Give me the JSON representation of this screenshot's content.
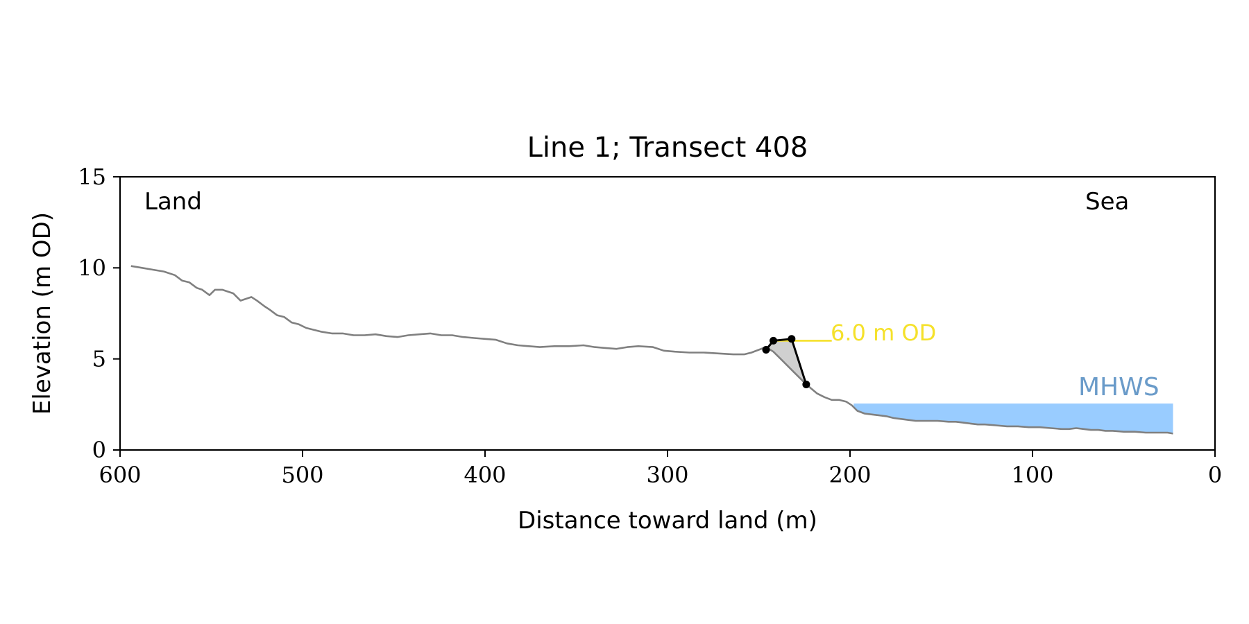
{
  "chart_data": {
    "type": "line",
    "title": "Line 1; Transect 408",
    "xlabel": "Distance toward land (m)",
    "ylabel": "Elevation (m OD)",
    "xlim": [
      600,
      0
    ],
    "ylim": [
      0,
      15
    ],
    "x_ticks": [
      600,
      500,
      400,
      300,
      200,
      100,
      0
    ],
    "y_ticks": [
      0,
      5,
      10,
      15
    ],
    "grid": false,
    "annotations": {
      "land": "Land",
      "sea": "Sea",
      "od_line_label": "6.0 m OD",
      "mhws_label": "MHWS"
    },
    "colors": {
      "profile": "#808080",
      "feature": "#000000",
      "feature_fill": "#d0d0d0",
      "od_line": "#f5e12a",
      "mhws_fill": "#99ccff",
      "mhws_text": "#6a9bc9"
    },
    "profile": {
      "x": [
        594,
        588,
        582,
        576,
        570,
        566,
        562,
        558,
        555,
        551,
        548,
        544,
        541,
        538,
        534,
        531,
        528,
        525,
        521,
        518,
        514,
        510,
        506,
        502,
        498,
        494,
        490,
        484,
        478,
        472,
        466,
        460,
        454,
        448,
        442,
        436,
        430,
        424,
        418,
        412,
        406,
        400,
        394,
        388,
        382,
        376,
        370,
        362,
        354,
        346,
        340,
        334,
        328,
        322,
        316,
        308,
        302,
        296,
        288,
        280,
        272,
        264,
        258,
        254,
        250,
        246,
        242,
        238,
        234,
        230,
        227,
        224,
        221,
        218,
        214,
        210,
        206,
        202,
        199,
        196,
        192,
        188,
        184,
        180,
        176,
        172,
        168,
        164,
        158,
        152,
        146,
        142,
        138,
        134,
        130,
        126,
        120,
        114,
        108,
        102,
        96,
        90,
        84,
        80,
        76,
        72,
        68,
        64,
        60,
        56,
        50,
        44,
        38,
        32,
        26,
        23
      ],
      "y": [
        10.1,
        10.0,
        9.9,
        9.8,
        9.6,
        9.3,
        9.2,
        8.9,
        8.8,
        8.5,
        8.8,
        8.8,
        8.7,
        8.6,
        8.2,
        8.3,
        8.4,
        8.2,
        7.9,
        7.7,
        7.4,
        7.3,
        7.0,
        6.9,
        6.7,
        6.6,
        6.5,
        6.4,
        6.4,
        6.3,
        6.3,
        6.35,
        6.25,
        6.2,
        6.3,
        6.35,
        6.4,
        6.3,
        6.3,
        6.2,
        6.15,
        6.1,
        6.05,
        5.85,
        5.75,
        5.7,
        5.65,
        5.7,
        5.7,
        5.75,
        5.65,
        5.6,
        5.55,
        5.65,
        5.7,
        5.65,
        5.45,
        5.4,
        5.35,
        5.35,
        5.3,
        5.25,
        5.25,
        5.35,
        5.5,
        5.65,
        5.4,
        5.0,
        4.6,
        4.2,
        3.9,
        3.6,
        3.35,
        3.1,
        2.9,
        2.75,
        2.75,
        2.65,
        2.45,
        2.15,
        2.0,
        1.95,
        1.9,
        1.85,
        1.75,
        1.7,
        1.65,
        1.6,
        1.6,
        1.6,
        1.55,
        1.55,
        1.5,
        1.45,
        1.4,
        1.4,
        1.35,
        1.3,
        1.3,
        1.25,
        1.25,
        1.2,
        1.15,
        1.15,
        1.2,
        1.15,
        1.1,
        1.1,
        1.05,
        1.05,
        1.0,
        1.0,
        0.95,
        0.95,
        0.95,
        0.9
      ]
    },
    "feature_points": [
      {
        "x": 246,
        "y": 5.5
      },
      {
        "x": 242,
        "y": 6.0
      },
      {
        "x": 232,
        "y": 6.1
      },
      {
        "x": 224,
        "y": 3.6
      }
    ],
    "od_line": {
      "y": 6.0,
      "x_start": 244,
      "x_end": 210
    },
    "mhws": {
      "level": 2.55,
      "x_start": 198,
      "x_end": 23
    }
  }
}
